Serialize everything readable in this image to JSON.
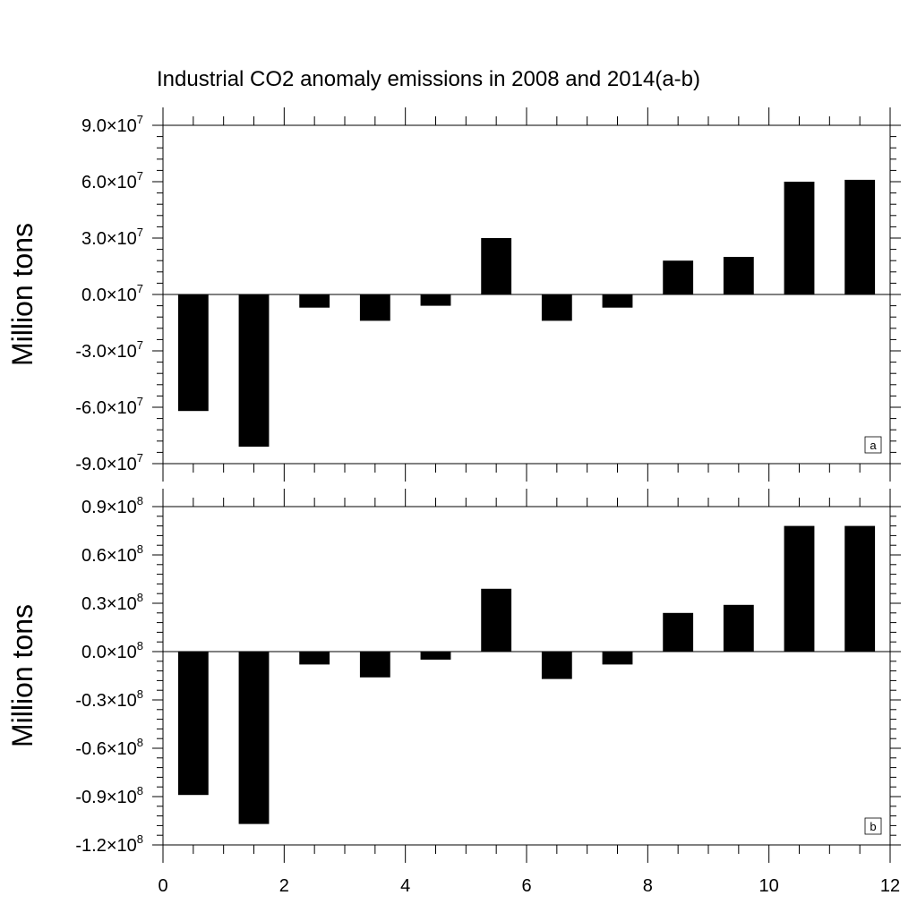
{
  "chart_data": [
    {
      "type": "bar",
      "title": "Industrial CO2 anomaly emissions in 2008 and 2014(a-b)",
      "ylabel": "Million tons",
      "panel_tag": "a",
      "x": [
        0.5,
        1.5,
        2.5,
        3.5,
        4.5,
        5.5,
        6.5,
        7.5,
        8.5,
        9.5,
        10.5,
        11.5
      ],
      "values": [
        -62000000,
        -81000000,
        -7000000,
        -14000000,
        -6000000,
        30000000,
        -14000000,
        -7000000,
        18000000,
        20000000,
        60000000,
        61000000
      ],
      "xlim": [
        0,
        12
      ],
      "ylim": [
        -90000000,
        90000000
      ],
      "yticks": [
        {
          "mant": "9.0",
          "exp": "7"
        },
        {
          "mant": "6.0",
          "exp": "7"
        },
        {
          "mant": "3.0",
          "exp": "7"
        },
        {
          "mant": "0.0",
          "exp": "7"
        },
        {
          "mant": "-3.0",
          "exp": "7"
        },
        {
          "mant": "-6.0",
          "exp": "7"
        },
        {
          "mant": "-9.0",
          "exp": "7"
        }
      ],
      "bar_color": "#000000"
    },
    {
      "type": "bar",
      "title": "",
      "ylabel": "Million tons",
      "panel_tag": "b",
      "x": [
        0.5,
        1.5,
        2.5,
        3.5,
        4.5,
        5.5,
        6.5,
        7.5,
        8.5,
        9.5,
        10.5,
        11.5
      ],
      "values": [
        -89000000,
        -107000000,
        -8000000,
        -16000000,
        -5000000,
        39000000,
        -17000000,
        -8000000,
        24000000,
        29000000,
        78000000,
        78000000
      ],
      "xlim": [
        0,
        12
      ],
      "ylim": [
        -120000000,
        90000000
      ],
      "xticks": [
        "0",
        "2",
        "4",
        "6",
        "8",
        "10",
        "12"
      ],
      "yticks": [
        {
          "mant": "0.9",
          "exp": "8"
        },
        {
          "mant": "0.6",
          "exp": "8"
        },
        {
          "mant": "0.3",
          "exp": "8"
        },
        {
          "mant": "0.0",
          "exp": "8"
        },
        {
          "mant": "-0.3",
          "exp": "8"
        },
        {
          "mant": "-0.6",
          "exp": "8"
        },
        {
          "mant": "-0.9",
          "exp": "8"
        },
        {
          "mant": "-1.2",
          "exp": "8"
        }
      ],
      "bar_color": "#000000"
    }
  ]
}
